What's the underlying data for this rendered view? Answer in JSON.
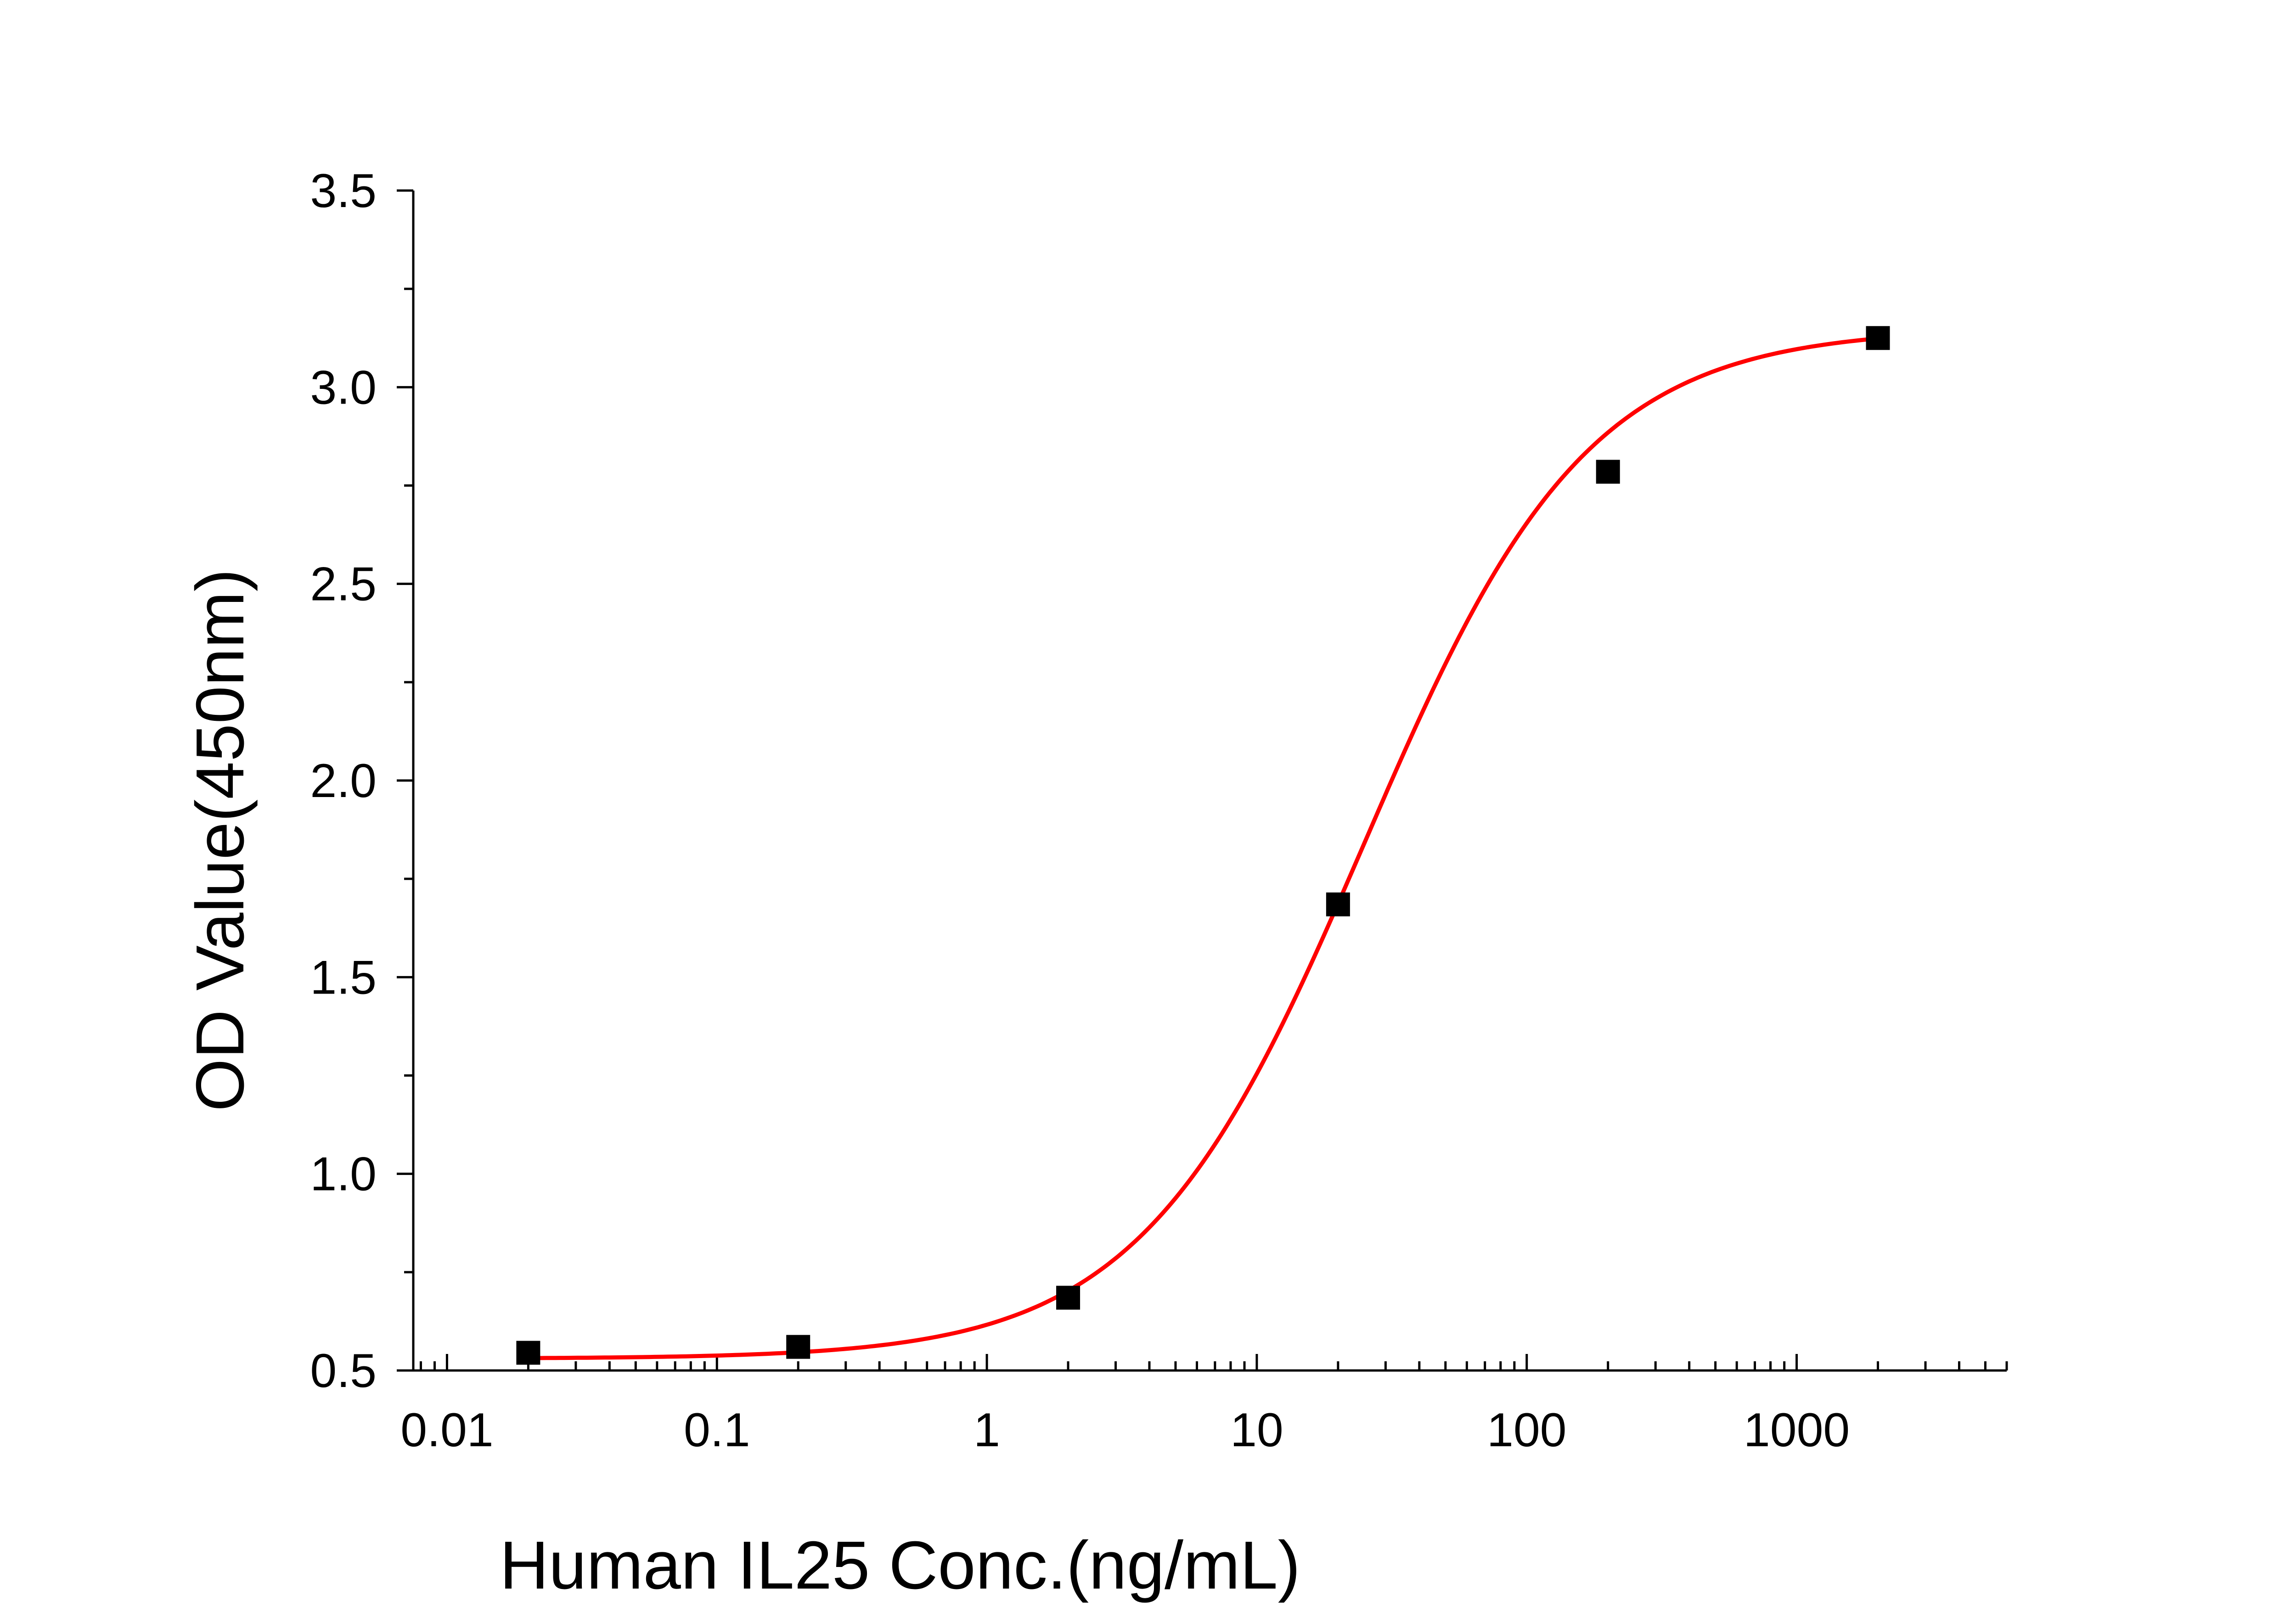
{
  "chart_data": {
    "type": "scatter",
    "title": "",
    "xlabel": "Human IL25 Conc.(ng/mL)",
    "ylabel": "OD Value(450nm)",
    "x_scale": "log",
    "xlim": [
      0.0075,
      6000
    ],
    "ylim": [
      0.5,
      3.5
    ],
    "x_ticks": [
      0.01,
      0.1,
      1,
      10,
      100,
      1000
    ],
    "x_tick_labels": [
      "0.01",
      "0.1",
      "1",
      "10",
      "100",
      "1000"
    ],
    "y_ticks": [
      0.5,
      1.0,
      1.5,
      2.0,
      2.5,
      3.0,
      3.5
    ],
    "y_tick_labels": [
      "0.5",
      "1.0",
      "1.5",
      "2.0",
      "2.5",
      "3.0",
      "3.5"
    ],
    "grid": false,
    "legend": "none",
    "series": [
      {
        "kind": "points",
        "marker": "square",
        "color": "#000000",
        "x": [
          0.02,
          0.2,
          2,
          20,
          200,
          2000
        ],
        "y": [
          0.545,
          0.56,
          0.685,
          1.685,
          2.785,
          3.125
        ]
      },
      {
        "kind": "fit-curve",
        "color": "#ff0000",
        "model": "4PL",
        "params": {
          "bottom": 0.53,
          "top": 3.15,
          "ec50": 25,
          "hill": 1.05
        },
        "x_range": [
          0.02,
          2000
        ]
      }
    ]
  }
}
